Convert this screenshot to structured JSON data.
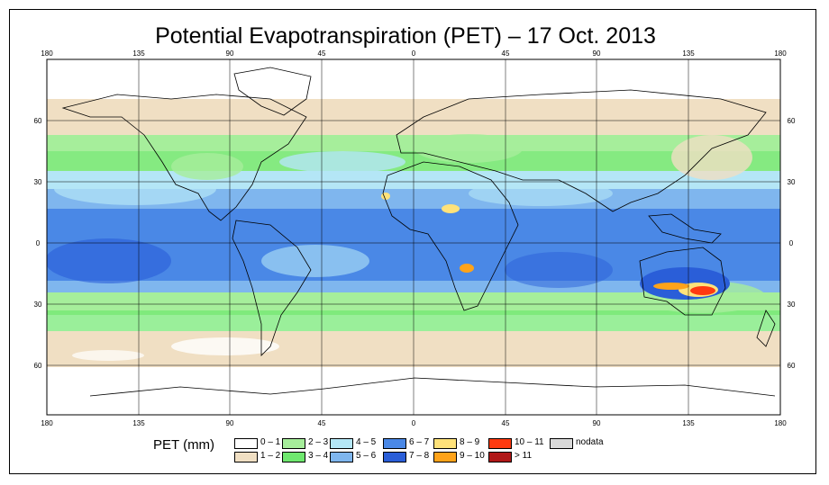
{
  "title": "Potential Evapotranspiration (PET) – 17 Oct. 2013",
  "lon_ticks": [
    "180",
    "135",
    "90",
    "45",
    "0",
    "45",
    "90",
    "135",
    "180"
  ],
  "lat_ticks": [
    "60",
    "30",
    "0",
    "30",
    "60"
  ],
  "legend": {
    "title": "PET (mm)",
    "items": [
      {
        "label": "0 – 1",
        "color": "#ffffff"
      },
      {
        "label": "1 – 2",
        "color": "#f0dfc3"
      },
      {
        "label": "2 – 3",
        "color": "#a6ee9b"
      },
      {
        "label": "3 – 4",
        "color": "#6fe86f"
      },
      {
        "label": "4 – 5",
        "color": "#b4e6f6"
      },
      {
        "label": "5 – 6",
        "color": "#7fb6ee"
      },
      {
        "label": "6 – 7",
        "color": "#4a88e6"
      },
      {
        "label": "7 – 8",
        "color": "#2a5ed8"
      },
      {
        "label": "8 – 9",
        "color": "#ffe27a"
      },
      {
        "label": "9 – 10",
        "color": "#ffa31a"
      },
      {
        "label": "10 – 11",
        "color": "#ff3a10"
      },
      {
        "label": "> 11",
        "color": "#b01818"
      },
      {
        "label": "nodata",
        "color": "#d9d9d9"
      }
    ]
  }
}
